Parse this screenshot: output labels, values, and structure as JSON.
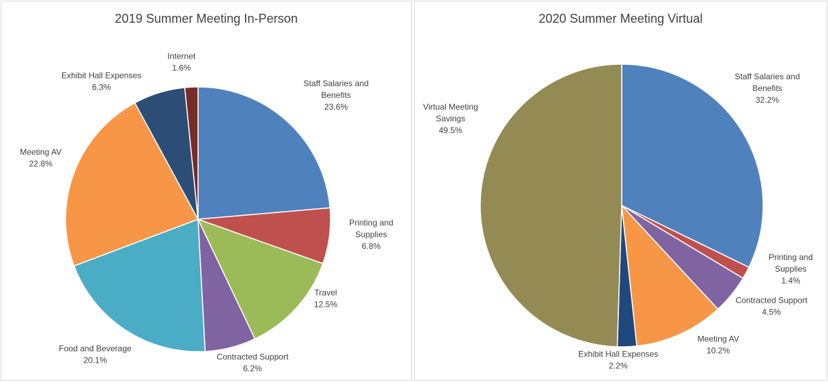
{
  "chart_data": [
    {
      "type": "pie",
      "title": "2019 Summer Meeting In-Person",
      "start_angle_deg": 0,
      "direction": "clockwise",
      "slices": [
        {
          "label_lines": [
            "Staff Salaries and",
            "Benefits"
          ],
          "pct_label": "23.6%",
          "value": 23.6,
          "color": "#4f81bd"
        },
        {
          "label_lines": [
            "Printing and",
            "Supplies"
          ],
          "pct_label": "6.8%",
          "value": 6.8,
          "color": "#c0504d"
        },
        {
          "label_lines": [
            "Travel"
          ],
          "pct_label": "12.5%",
          "value": 12.5,
          "color": "#9bbb59"
        },
        {
          "label_lines": [
            "Contracted Support"
          ],
          "pct_label": "6.2%",
          "value": 6.2,
          "color": "#8064a2"
        },
        {
          "label_lines": [
            "Food and Beverage"
          ],
          "pct_label": "20.1%",
          "value": 20.1,
          "color": "#4bacc6"
        },
        {
          "label_lines": [
            "Meeting AV"
          ],
          "pct_label": "22.8%",
          "value": 22.8,
          "color": "#f79646"
        },
        {
          "label_lines": [
            "Exhibit Hall Expenses"
          ],
          "pct_label": "6.3%",
          "value": 6.3,
          "color": "#2c4d75"
        },
        {
          "label_lines": [
            "Internet"
          ],
          "pct_label": "1.6%",
          "value": 1.6,
          "color": "#772c2a"
        }
      ]
    },
    {
      "type": "pie",
      "title": "2020 Summer Meeting Virtual",
      "start_angle_deg": 0,
      "direction": "clockwise",
      "slices": [
        {
          "label_lines": [
            "Staff Salaries and",
            "Benefits"
          ],
          "pct_label": "32.2%",
          "value": 32.2,
          "color": "#4f81bd"
        },
        {
          "label_lines": [
            "Printing and",
            "Supplies"
          ],
          "pct_label": "1.4%",
          "value": 1.4,
          "color": "#c0504d"
        },
        {
          "label_lines": [
            "Contracted Support"
          ],
          "pct_label": "4.5%",
          "value": 4.5,
          "color": "#8064a2"
        },
        {
          "label_lines": [
            "Meeting AV"
          ],
          "pct_label": "10.2%",
          "value": 10.2,
          "color": "#f79646"
        },
        {
          "label_lines": [
            "Exhibit Hall Expenses"
          ],
          "pct_label": "2.2%",
          "value": 2.2,
          "color": "#1f497d"
        },
        {
          "label_lines": [
            "Virtual Meeting",
            "Savings"
          ],
          "pct_label": "49.5%",
          "value": 49.5,
          "color": "#948a54"
        }
      ]
    }
  ]
}
